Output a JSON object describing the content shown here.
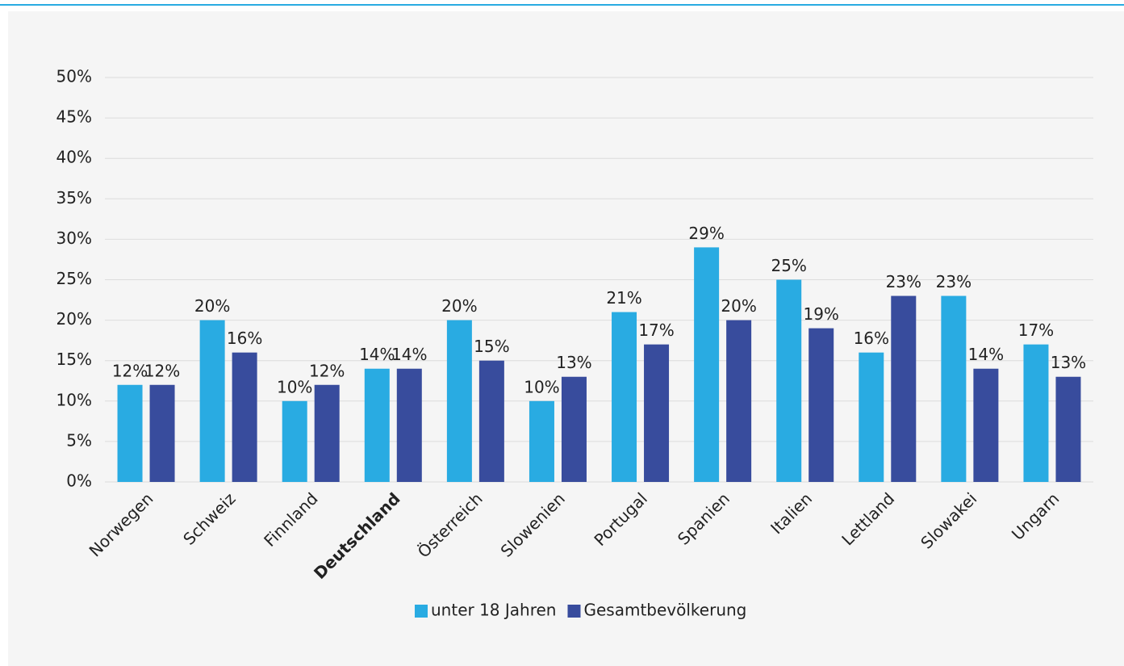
{
  "chart_data": {
    "type": "bar",
    "categories": [
      "Norwegen",
      "Schweiz",
      "Finnland",
      "Deutschland",
      "Österreich",
      "Slowenien",
      "Portugal",
      "Spanien",
      "Italien",
      "Lettland",
      "Slowakei",
      "Ungarn"
    ],
    "category_weights": [
      "normal",
      "normal",
      "normal",
      "bold",
      "normal",
      "normal",
      "normal",
      "normal",
      "normal",
      "normal",
      "normal",
      "normal"
    ],
    "series": [
      {
        "name": "unter 18 Jahren",
        "color": "#29abe2",
        "values": [
          12,
          20,
          10,
          14,
          20,
          10,
          21,
          29,
          25,
          16,
          23,
          17
        ],
        "value_labels": [
          "12%",
          "20%",
          "10%",
          "14%",
          "20%",
          "10%",
          "21%",
          "29%",
          "25%",
          "16%",
          "23%",
          "17%"
        ]
      },
      {
        "name": "Gesamtbevölkerung",
        "color": "#384c9d",
        "values": [
          12,
          16,
          12,
          14,
          15,
          13,
          17,
          20,
          19,
          23,
          14,
          13
        ],
        "value_labels": [
          "12%",
          "16%",
          "12%",
          "14%",
          "15%",
          "13%",
          "17%",
          "20%",
          "19%",
          "23%",
          "14%",
          "13%"
        ]
      }
    ],
    "ylim": [
      0,
      50
    ],
    "yticks": [
      {
        "value": 0,
        "label": "0%"
      },
      {
        "value": 5,
        "label": "5%"
      },
      {
        "value": 10,
        "label": "10%"
      },
      {
        "value": 15,
        "label": "15%"
      },
      {
        "value": 20,
        "label": "20%"
      },
      {
        "value": 25,
        "label": "25%"
      },
      {
        "value": 30,
        "label": "30%"
      },
      {
        "value": 35,
        "label": "35%"
      },
      {
        "value": 40,
        "label": "40%"
      },
      {
        "value": 45,
        "label": "45%"
      },
      {
        "value": 50,
        "label": "50%"
      }
    ],
    "grid": true,
    "legend": "bottom"
  }
}
